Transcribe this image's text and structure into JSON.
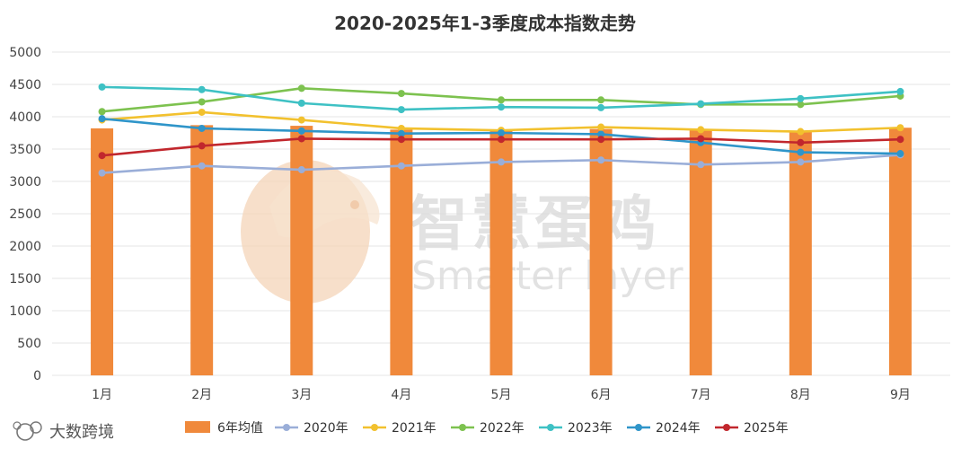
{
  "chart_data": {
    "type": "bar+line",
    "title": "2020-2025年1-3季度成本指数走势",
    "categories": [
      "1月",
      "2月",
      "3月",
      "4月",
      "5月",
      "6月",
      "7月",
      "8月",
      "9月"
    ],
    "ylim": [
      0,
      5000
    ],
    "yticks": [
      "0",
      "500",
      "1000",
      "1500",
      "2000",
      "2500",
      "3000",
      "3500",
      "4000",
      "4500",
      "5000"
    ],
    "grid": true,
    "legend_position": "bottom",
    "bar_series": {
      "name": "6年均值",
      "color": "#f0893b",
      "values": [
        3820,
        3870,
        3860,
        3800,
        3790,
        3810,
        3800,
        3770,
        3830
      ]
    },
    "series": [
      {
        "name": "2020年",
        "color": "#9aaed8",
        "values": [
          3130,
          3240,
          3180,
          3240,
          3300,
          3330,
          3260,
          3300,
          3410
        ]
      },
      {
        "name": "2021年",
        "color": "#f2c12e",
        "values": [
          3950,
          4070,
          3950,
          3820,
          3790,
          3840,
          3800,
          3770,
          3830
        ]
      },
      {
        "name": "2022年",
        "color": "#7dc24f",
        "values": [
          4080,
          4230,
          4440,
          4360,
          4260,
          4260,
          4190,
          4190,
          4320
        ]
      },
      {
        "name": "2023年",
        "color": "#3ec1c4",
        "values": [
          4460,
          4420,
          4210,
          4110,
          4150,
          4140,
          4200,
          4280,
          4390
        ]
      },
      {
        "name": "2024年",
        "color": "#2f95c9",
        "values": [
          3970,
          3820,
          3780,
          3740,
          3750,
          3730,
          3600,
          3450,
          3430
        ]
      },
      {
        "name": "2025年",
        "color": "#c1272d",
        "values": [
          3400,
          3550,
          3660,
          3650,
          3650,
          3650,
          3660,
          3600,
          3650
        ]
      }
    ]
  },
  "watermark": {
    "chinese": "智慧蛋鸡",
    "english": "Smarter layer"
  },
  "branding": {
    "source_label": "大数跨境",
    "logo_icon": "bubble-logo-icon"
  }
}
